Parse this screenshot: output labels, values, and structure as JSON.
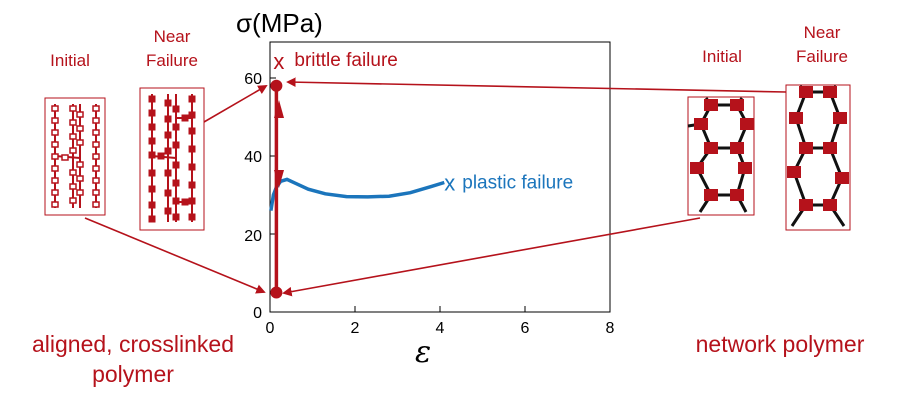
{
  "chart_data": {
    "type": "line",
    "title": "",
    "ylabel": "σ(MPa)",
    "xlabel": "ε",
    "xlim": [
      0,
      8
    ],
    "ylim": [
      0,
      65
    ],
    "xticks": [
      "0",
      "2",
      "4",
      "6",
      "8"
    ],
    "yticks": [
      "0",
      "20",
      "40",
      "60"
    ],
    "grid": false,
    "series": [
      {
        "color": "#1b75bc",
        "x": [
          0.02,
          0.08,
          0.15,
          0.25,
          0.4,
          0.6,
          0.9,
          1.3,
          1.8,
          2.3,
          2.8,
          3.3,
          3.8,
          4.1
        ],
        "y": [
          26,
          30,
          32,
          33.5,
          34,
          33,
          31.5,
          30.3,
          29.6,
          29.5,
          29.7,
          30.6,
          32.2,
          33.2
        ]
      },
      {
        "color": "#b5121b",
        "x": [
          0.15,
          0.15
        ],
        "y": [
          5,
          58
        ]
      }
    ],
    "markers": [
      {
        "label": "x",
        "text": "plastic failure",
        "x": 4.1,
        "y": 33.2,
        "color": "#1b75bc"
      },
      {
        "label": "x",
        "text": "brittle failure",
        "x": 0.15,
        "y": 62,
        "color": "#b5121b"
      }
    ]
  },
  "labels": {
    "left_initial": "Initial",
    "left_near_1": "Near",
    "left_near_2": "Failure",
    "right_initial": "Initial",
    "right_near_1": "Near",
    "right_near_2": "Failure",
    "left_caption_1": "aligned, crosslinked",
    "left_caption_2": "polymer",
    "right_caption": "network polymer"
  },
  "colors": {
    "red": "#b5121b",
    "blue": "#1b75bc",
    "dark": "#111111"
  }
}
